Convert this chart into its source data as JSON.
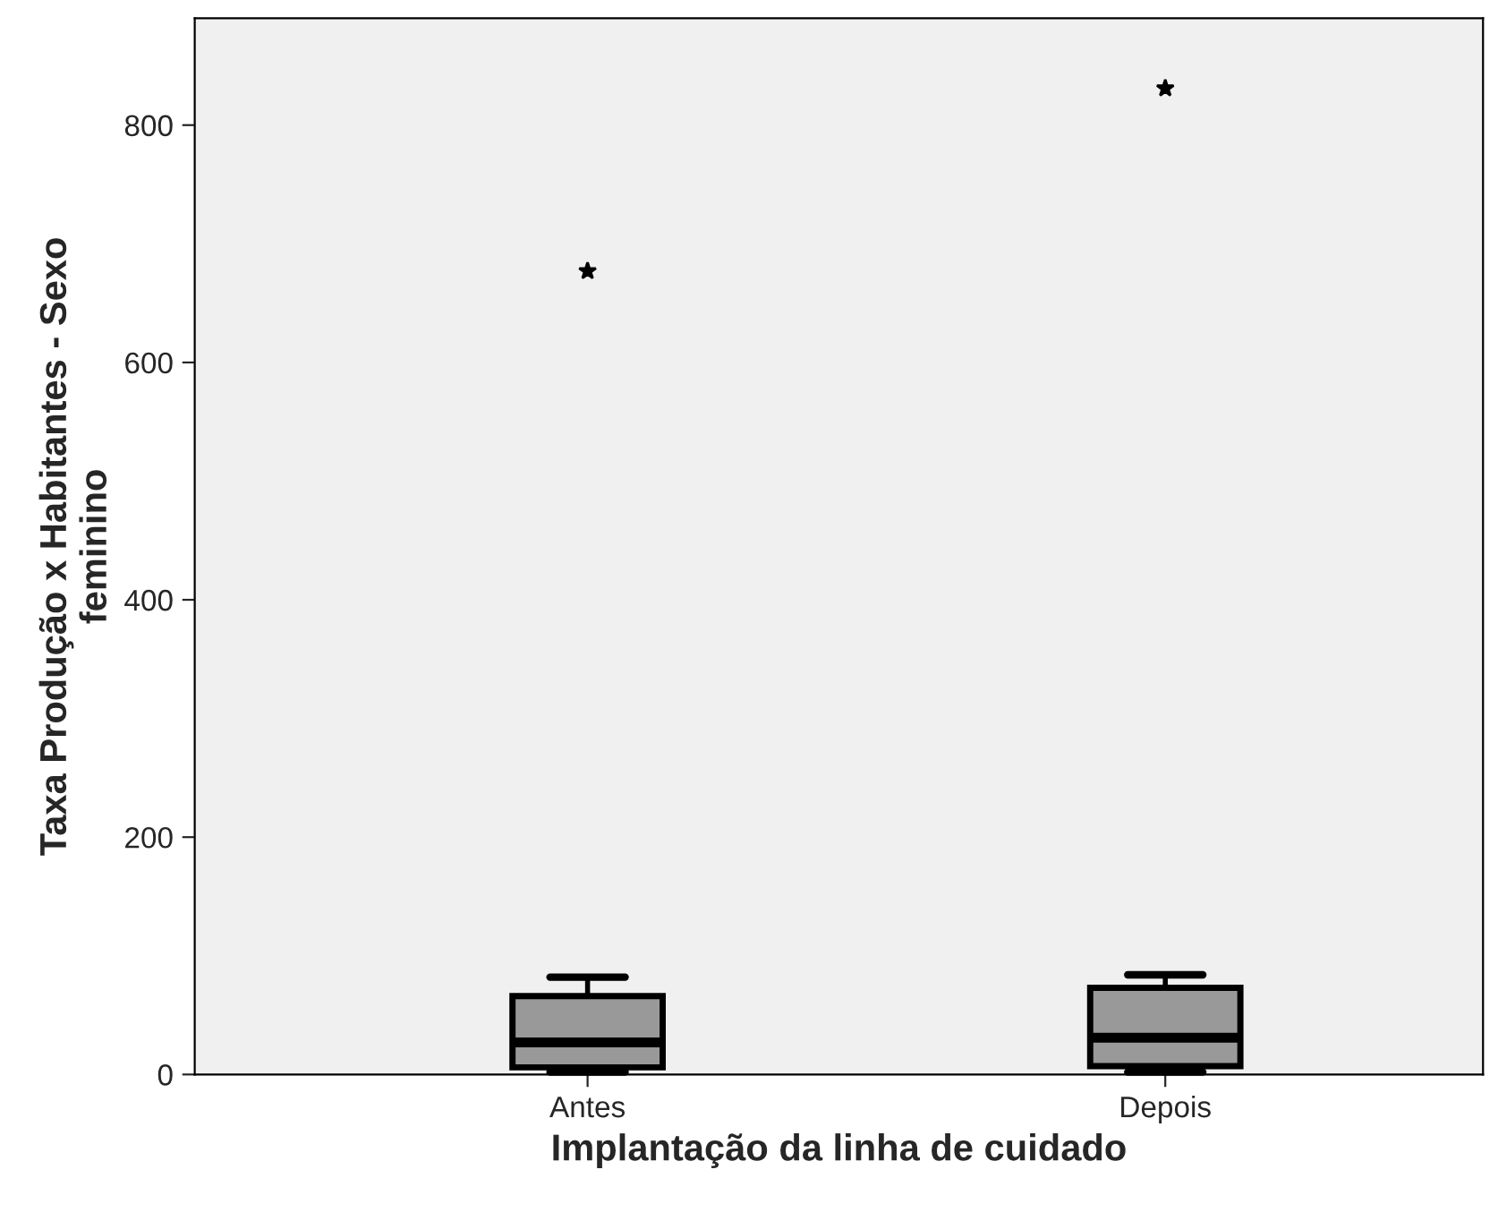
{
  "chart_data": {
    "type": "box",
    "xlabel": "Implantação da linha de cuidado",
    "ylabel": "Taxa Produção x Habitantes - Sexo\nfeminino",
    "categories": [
      "Antes",
      "Depois"
    ],
    "boxes": [
      {
        "low": 2,
        "q1": 6,
        "median": 27,
        "q3": 66,
        "high": 82,
        "outliers": [
          677
        ]
      },
      {
        "low": 2,
        "q1": 7,
        "median": 31,
        "q3": 73,
        "high": 84,
        "outliers": [
          831
        ]
      }
    ],
    "color": "#999999",
    "ylim": [
      0,
      890
    ],
    "yticks": [
      0,
      200,
      400,
      600,
      800
    ],
    "grid": false,
    "marker": "star"
  }
}
